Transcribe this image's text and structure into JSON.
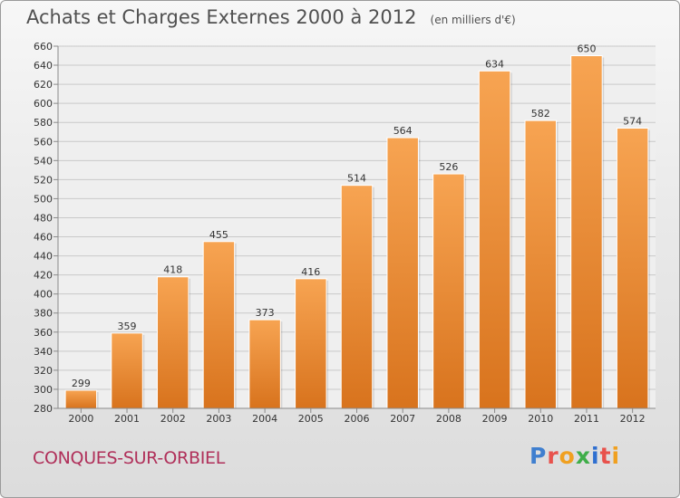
{
  "header": {
    "title": "Achats et Charges Externes 2000 à 2012",
    "unit_note": "(en milliers d'€)"
  },
  "footer": {
    "place": "CONQUES-SUR-ORBIEL",
    "logo_text": "Proxiti"
  },
  "colors": {
    "bar_top": "#f7a452",
    "bar_bottom": "#d8731d",
    "place_text": "#b0305a",
    "logo_letters": [
      "#3f7fcf",
      "#e8524c",
      "#f0a020",
      "#3fae49",
      "#2f6fd0",
      "#e8524c",
      "#f0a020"
    ]
  },
  "chart_data": {
    "type": "bar",
    "title": "Achats et Charges Externes 2000 à 2012",
    "subtitle": "(en milliers d'€)",
    "categories": [
      "2000",
      "2001",
      "2002",
      "2003",
      "2004",
      "2005",
      "2006",
      "2007",
      "2008",
      "2009",
      "2010",
      "2011",
      "2012"
    ],
    "values": [
      299,
      359,
      418,
      455,
      373,
      416,
      514,
      564,
      526,
      634,
      582,
      650,
      574
    ],
    "ylim": [
      280,
      660
    ],
    "yticks": [
      280,
      300,
      320,
      340,
      360,
      380,
      400,
      420,
      440,
      460,
      480,
      500,
      520,
      540,
      560,
      580,
      600,
      620,
      640,
      660
    ],
    "grid": true,
    "legend": "none"
  }
}
